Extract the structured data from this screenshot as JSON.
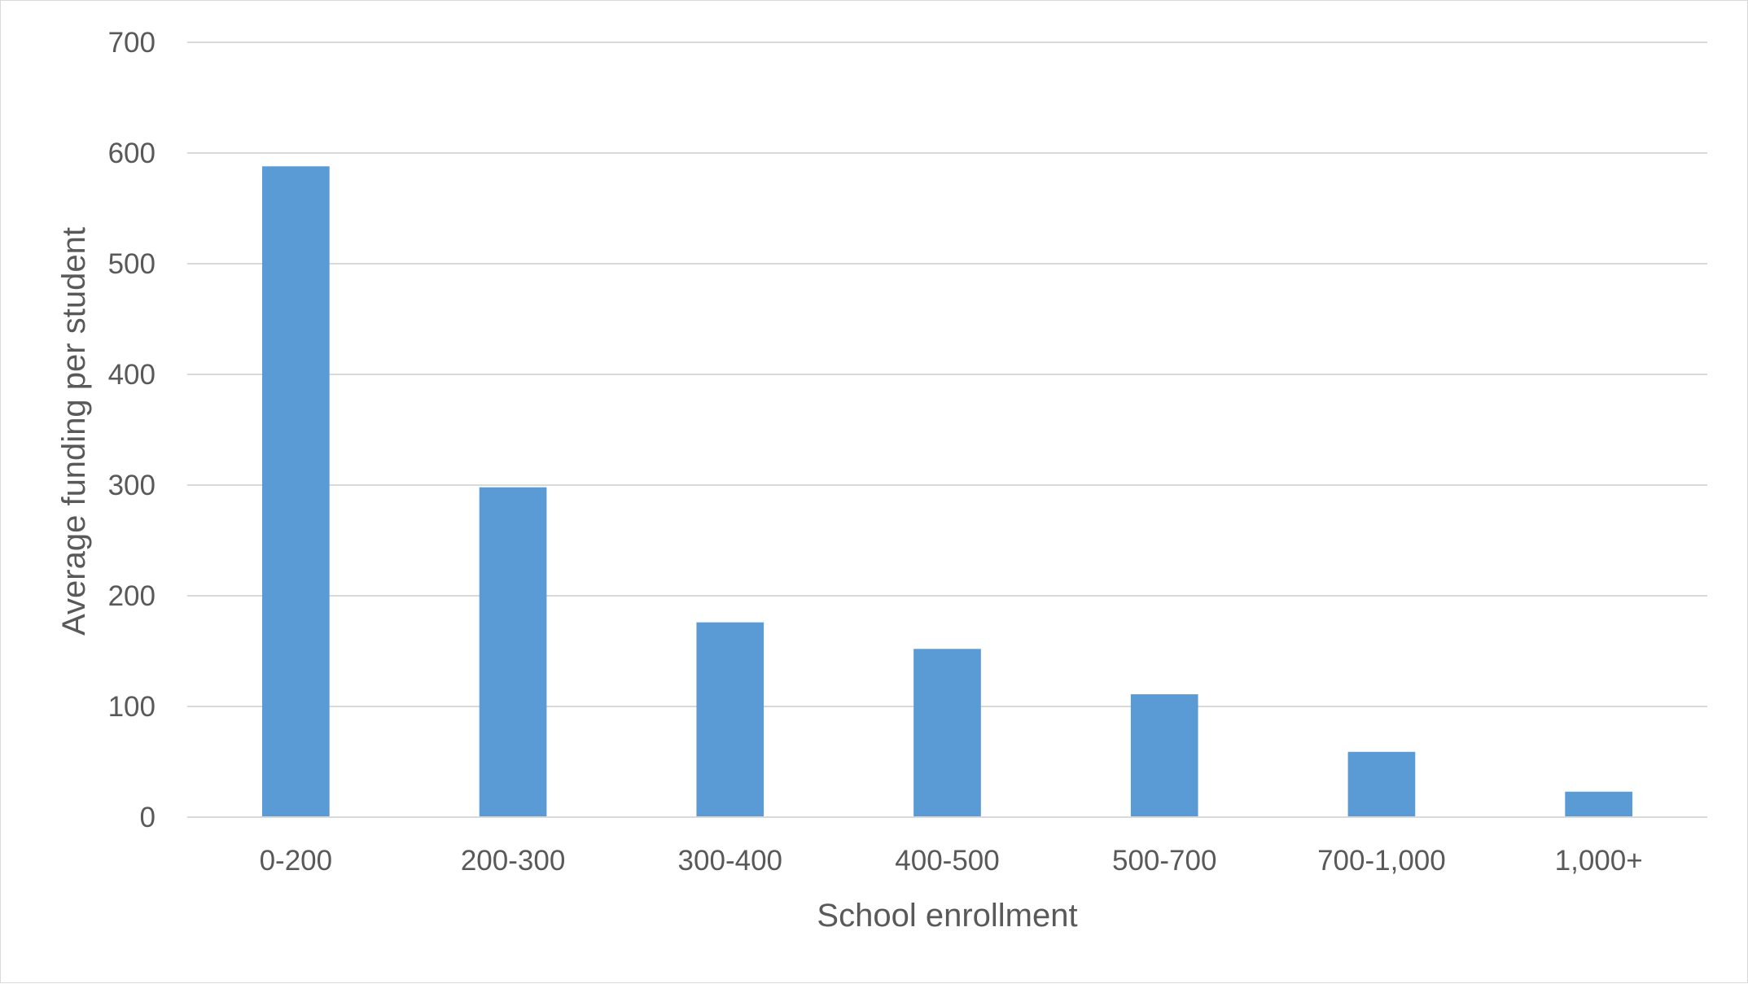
{
  "chart_data": {
    "type": "bar",
    "title": "",
    "xlabel": "School enrollment",
    "ylabel": "Average funding per student",
    "categories": [
      "0-200",
      "200-300",
      "300-400",
      "400-500",
      "500-700",
      "700-1,000",
      "1,000+"
    ],
    "values": [
      588,
      298,
      176,
      152,
      111,
      59,
      23
    ],
    "ylim": [
      0,
      700
    ],
    "yticks": [
      "0",
      "100",
      "200",
      "300",
      "400",
      "500",
      "600",
      "700"
    ],
    "ytick_values": [
      0,
      100,
      200,
      300,
      400,
      500,
      600,
      700
    ],
    "grid": true,
    "legend": "none",
    "bar_color": "#5b9bd5"
  }
}
